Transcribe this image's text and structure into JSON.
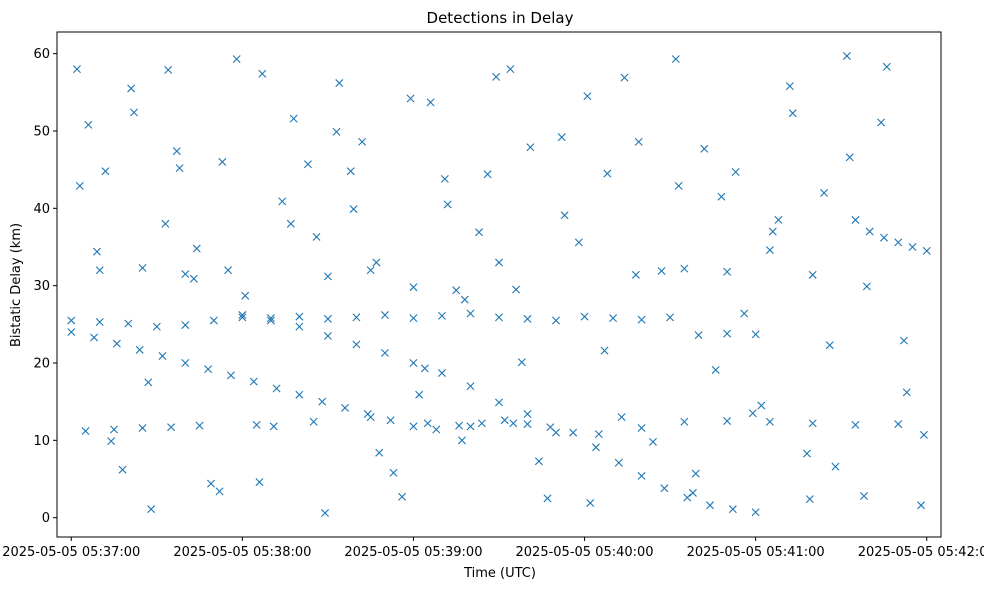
{
  "chart_data": {
    "type": "scatter",
    "title": "Detections in Delay",
    "xlabel": "Time (UTC)",
    "ylabel": "Bistatic Delay (km)",
    "x_tick_labels": [
      "2025-05-05 05:37:00",
      "2025-05-05 05:38:00",
      "2025-05-05 05:39:00",
      "2025-05-05 05:40:00",
      "2025-05-05 05:41:00",
      "2025-05-05 05:42:00"
    ],
    "y_ticks": [
      0,
      10,
      20,
      30,
      40,
      50,
      60
    ],
    "x_range": [
      "2025-05-05 05:36:55",
      "2025-05-05 05:42:05"
    ],
    "ylim": [
      -2.5,
      62.8
    ],
    "marker": "x",
    "color": "#1f77b4",
    "grid": false,
    "series": [
      {
        "x": [
          "05:37:00",
          "05:37:08",
          "05:37:16",
          "05:37:24",
          "05:37:32",
          "05:37:40",
          "05:37:48",
          "05:37:56",
          "05:38:04",
          "05:38:12",
          "05:38:20",
          "05:38:28",
          "05:38:36",
          "05:38:44",
          "05:38:52",
          "05:39:00",
          "05:39:08",
          "05:39:16",
          "05:39:24",
          "05:39:32",
          "05:39:40",
          "05:39:48",
          "05:39:56",
          "05:40:04",
          "05:40:12",
          "05:40:20",
          "05:40:28",
          "05:40:36",
          "05:40:44",
          "05:40:52",
          "05:41:00",
          "05:37:00",
          "05:37:10",
          "05:37:20",
          "05:37:30",
          "05:37:40",
          "05:37:50",
          "05:38:00",
          "05:38:10",
          "05:38:20",
          "05:38:30",
          "05:38:40",
          "05:38:50",
          "05:39:00",
          "05:39:10",
          "05:39:20",
          "05:39:30",
          "05:39:40",
          "05:38:00",
          "05:38:10",
          "05:38:20",
          "05:38:30",
          "05:38:40",
          "05:38:50",
          "05:39:00",
          "05:39:10",
          "05:39:20",
          "05:39:30",
          "05:39:40",
          "05:39:50",
          "05:40:00",
          "05:40:10",
          "05:40:20",
          "05:40:30",
          "05:40:40",
          "05:40:50",
          "05:41:00",
          "05:41:35",
          "05:41:40",
          "05:41:45",
          "05:41:50",
          "05:41:55",
          "05:42:00",
          "05:37:05",
          "05:37:15",
          "05:37:25",
          "05:37:35",
          "05:37:45",
          "05:38:05",
          "05:38:25",
          "05:38:45",
          "05:39:05",
          "05:39:20",
          "05:39:35",
          "05:39:50",
          "05:40:05",
          "05:40:20",
          "05:40:35",
          "05:40:50",
          "05:41:05",
          "05:41:20",
          "05:41:35",
          "05:41:50",
          "05:37:10",
          "05:37:25",
          "05:37:40",
          "05:37:55",
          "05:38:30",
          "05:38:45",
          "05:39:00",
          "05:39:15",
          "05:39:30",
          "05:40:35",
          "05:40:50",
          "05:41:05",
          "05:41:20",
          "05:37:02",
          "05:37:06",
          "05:37:12",
          "05:37:18",
          "05:37:22",
          "05:37:28",
          "05:37:34",
          "05:37:38",
          "05:37:44",
          "05:37:52",
          "05:37:58",
          "05:38:06",
          "05:38:14",
          "05:38:18",
          "05:38:26",
          "05:38:34",
          "05:38:38",
          "05:38:42",
          "05:38:48",
          "05:38:56",
          "05:39:02",
          "05:39:06",
          "05:39:12",
          "05:39:18",
          "05:39:26",
          "05:39:34",
          "05:39:38",
          "05:39:44",
          "05:39:52",
          "05:39:58",
          "05:40:02",
          "05:40:08",
          "05:40:14",
          "05:40:18",
          "05:40:24",
          "05:40:32",
          "05:40:38",
          "05:40:42",
          "05:40:48",
          "05:40:56",
          "05:41:02",
          "05:41:08",
          "05:41:12",
          "05:41:18",
          "05:41:24",
          "05:41:28",
          "05:41:32",
          "05:41:38",
          "05:41:44",
          "05:41:52",
          "05:41:58",
          "05:37:03",
          "05:37:09",
          "05:37:14",
          "05:37:21",
          "05:37:27",
          "05:37:33",
          "05:37:37",
          "05:37:43",
          "05:37:49",
          "05:37:53",
          "05:38:01",
          "05:38:07",
          "05:38:11",
          "05:38:17",
          "05:38:23",
          "05:38:29",
          "05:38:33",
          "05:38:39",
          "05:38:47",
          "05:38:53",
          "05:38:59",
          "05:39:04",
          "05:39:11",
          "05:39:17",
          "05:39:23",
          "05:39:29",
          "05:39:36",
          "05:39:41",
          "05:39:47",
          "05:39:53",
          "05:40:01",
          "05:40:07",
          "05:40:13",
          "05:40:19",
          "05:40:27",
          "05:40:33",
          "05:40:39",
          "05:40:46",
          "05:40:53",
          "05:40:59",
          "05:41:06",
          "05:41:13",
          "05:41:19",
          "05:41:26",
          "05:41:33",
          "05:41:39",
          "05:41:46",
          "05:41:53",
          "05:41:59"
        ],
        "y": [
          24.0,
          23.3,
          22.5,
          21.7,
          20.9,
          20.0,
          19.2,
          18.4,
          17.6,
          16.7,
          15.9,
          15.0,
          14.2,
          13.4,
          12.6,
          11.8,
          11.4,
          11.9,
          12.2,
          12.6,
          12.1,
          11.7,
          11.0,
          9.1,
          7.1,
          5.4,
          3.8,
          2.6,
          1.6,
          1.1,
          0.7,
          25.5,
          25.3,
          25.1,
          24.7,
          24.9,
          25.5,
          25.9,
          25.5,
          24.7,
          23.5,
          22.4,
          21.3,
          20.0,
          18.7,
          17.0,
          14.9,
          13.4,
          26.2,
          25.8,
          26.0,
          25.7,
          25.9,
          26.2,
          25.8,
          26.1,
          26.4,
          25.9,
          25.7,
          25.5,
          26.0,
          25.8,
          25.6,
          25.9,
          23.6,
          23.8,
          23.7,
          38.5,
          37.0,
          36.2,
          35.6,
          35.0,
          34.5,
          11.2,
          11.4,
          11.6,
          11.7,
          11.9,
          12.0,
          12.4,
          13.0,
          12.2,
          11.8,
          12.2,
          11.0,
          10.8,
          11.6,
          12.4,
          12.5,
          12.4,
          12.2,
          12.0,
          12.1,
          32.0,
          32.3,
          31.5,
          32.0,
          31.2,
          32.0,
          29.8,
          29.4,
          33.0,
          32.2,
          31.8,
          34.6,
          31.4,
          58.0,
          50.8,
          44.8,
          6.2,
          52.4,
          1.1,
          57.9,
          45.2,
          34.8,
          3.4,
          59.3,
          4.6,
          40.9,
          51.6,
          36.3,
          56.2,
          44.8,
          48.6,
          8.4,
          2.7,
          15.9,
          53.7,
          40.5,
          28.2,
          44.4,
          58.0,
          20.1,
          7.3,
          49.2,
          35.6,
          1.9,
          44.5,
          56.9,
          31.4,
          9.8,
          59.3,
          3.2,
          47.7,
          41.5,
          26.4,
          14.5,
          38.5,
          55.8,
          8.3,
          42.0,
          6.6,
          59.7,
          2.8,
          51.1,
          22.9,
          1.6,
          42.9,
          34.4,
          9.9,
          55.5,
          17.5,
          38.0,
          47.4,
          30.9,
          4.4,
          46.0,
          28.7,
          57.4,
          11.8,
          38.0,
          45.7,
          0.6,
          49.9,
          39.9,
          33.0,
          5.8,
          54.2,
          19.3,
          43.8,
          10.0,
          36.9,
          57.0,
          29.5,
          47.9,
          2.5,
          39.1,
          54.5,
          21.6,
          13.0,
          48.6,
          31.9,
          42.9,
          5.7,
          19.1,
          44.7,
          13.5,
          37.0,
          52.3,
          2.4,
          22.3,
          46.6,
          29.9,
          58.3,
          16.2,
          10.7
        ]
      }
    ]
  }
}
